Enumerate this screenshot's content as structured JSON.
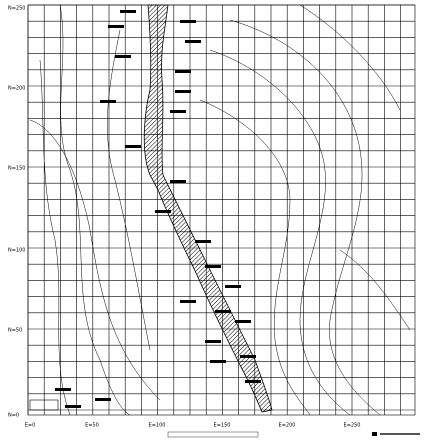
{
  "axes": {
    "north": [
      "N=250",
      "N=200",
      "N=150",
      "N=100",
      "N=50",
      "N=0"
    ],
    "east": [
      "E=0",
      "E=50",
      "E=100",
      "E=150",
      "E=200",
      "E=250"
    ]
  }
}
